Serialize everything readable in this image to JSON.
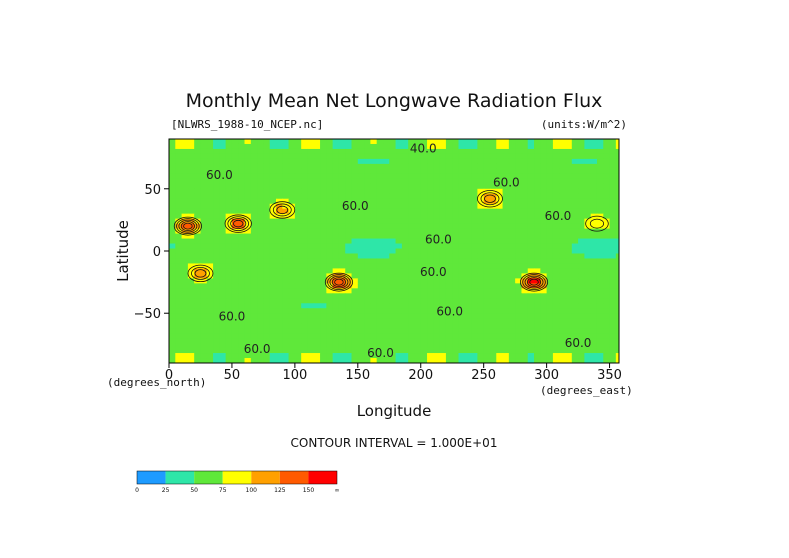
{
  "chart_data": {
    "type": "heatmap",
    "title": "Monthly Mean Net Longwave Radiation Flux",
    "file_label": "[NLWRS_1988-10_NCEP.nc]",
    "units_label": "(units:W/m^2)",
    "xlabel": "Longitude",
    "ylabel": "Latitude",
    "x_unit_label": "(degrees_east)",
    "y_unit_label": "(degrees_north)",
    "xlim": [
      0,
      357.5
    ],
    "ylim": [
      -90,
      90
    ],
    "x_ticks": [
      0,
      50,
      100,
      150,
      200,
      250,
      300,
      350
    ],
    "y_ticks": [
      50,
      0,
      -50
    ],
    "y_tick_labels": [
      "50",
      "0",
      "−50"
    ],
    "contour_interval_text": "CONTOUR INTERVAL = 1.000E+01",
    "contour_labels": [
      {
        "text": "40.0",
        "x": 202,
        "y": 79
      },
      {
        "text": "60.0",
        "x": 40,
        "y": 58
      },
      {
        "text": "60.0",
        "x": 148,
        "y": 33
      },
      {
        "text": "60.0",
        "x": 268,
        "y": 52
      },
      {
        "text": "60.0",
        "x": 309,
        "y": 25
      },
      {
        "text": "60.0",
        "x": 214,
        "y": 6
      },
      {
        "text": "60.0",
        "x": 210,
        "y": -20
      },
      {
        "text": "60.0",
        "x": 50,
        "y": -56
      },
      {
        "text": "60.0",
        "x": 223,
        "y": -52
      },
      {
        "text": "60.0",
        "x": 70,
        "y": -82
      },
      {
        "text": "60.0",
        "x": 168,
        "y": -85
      },
      {
        "text": "60.0",
        "x": 325,
        "y": -77
      }
    ],
    "hotspots": [
      {
        "lon": 15,
        "lat": 20,
        "peak": 150
      },
      {
        "lon": 55,
        "lat": 22,
        "peak": 135
      },
      {
        "lon": 90,
        "lat": 33,
        "peak": 110
      },
      {
        "lon": 25,
        "lat": -18,
        "peak": 120
      },
      {
        "lon": 135,
        "lat": -25,
        "peak": 155
      },
      {
        "lon": 290,
        "lat": -25,
        "peak": 160
      },
      {
        "lon": 255,
        "lat": 42,
        "peak": 110
      },
      {
        "lon": 340,
        "lat": 22,
        "peak": 100
      }
    ],
    "colorbar": {
      "tick_labels": [
        "0",
        "25",
        "50",
        "75",
        "100",
        "125",
        "150",
        "∞"
      ],
      "colors": [
        "#1e9bff",
        "#2ee6a8",
        "#5fe83a",
        "#ffff00",
        "#ffa000",
        "#ff5a00",
        "#ff0000"
      ]
    }
  }
}
